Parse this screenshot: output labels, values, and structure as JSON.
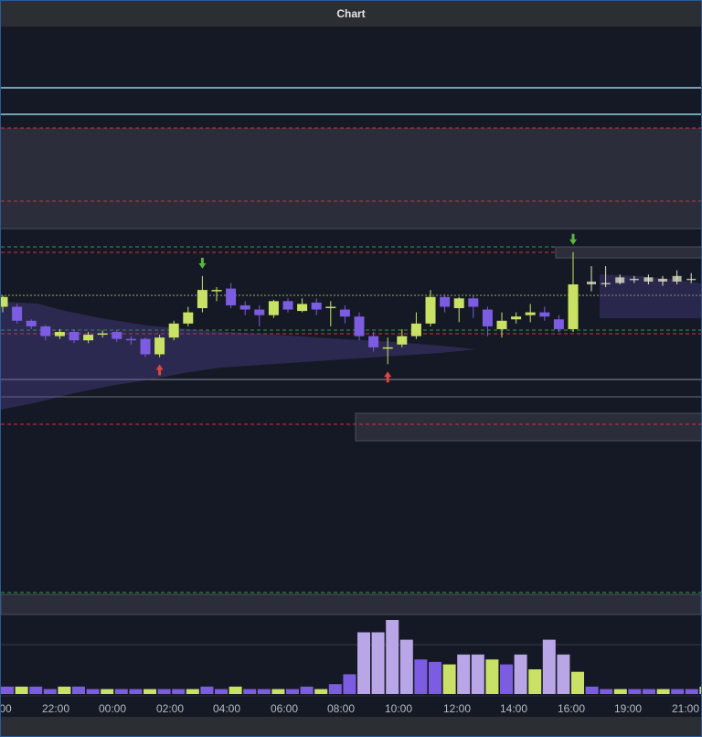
{
  "window": {
    "title": "Chart"
  },
  "colors": {
    "background": "#151925",
    "bull": "#c9e265",
    "bear": "#7c5ce0",
    "volume_high": "#b9a6e6",
    "zone": "#2b2d3a",
    "red_level": "#d8313a",
    "green_level": "#2e9e3c",
    "cyan_level": "#8fd3e0",
    "buy_arrow": "#e0453f",
    "sell_arrow": "#56b83c"
  },
  "chart_data": {
    "type": "candlestick",
    "x_tick_labels": [
      "00",
      "22:00",
      "00:00",
      "02:00",
      "04:00",
      "06:00",
      "08:00",
      "10:00",
      "12:00",
      "14:00",
      "16:00",
      "19:00",
      "21:00"
    ],
    "y_axis_range": [
      0,
      100
    ],
    "candles": [
      {
        "o": 84,
        "c": 91,
        "h": 92,
        "l": 80
      },
      {
        "o": 84,
        "c": 74,
        "h": 86,
        "l": 72
      },
      {
        "o": 74,
        "c": 70,
        "h": 75,
        "l": 68
      },
      {
        "o": 70,
        "c": 63,
        "h": 71,
        "l": 60
      },
      {
        "o": 63,
        "c": 66,
        "h": 68,
        "l": 61
      },
      {
        "o": 66,
        "c": 60,
        "h": 68,
        "l": 58
      },
      {
        "o": 60,
        "c": 64,
        "h": 66,
        "l": 58
      },
      {
        "o": 64,
        "c": 65,
        "h": 67,
        "l": 62
      },
      {
        "o": 66,
        "c": 61,
        "h": 67,
        "l": 59
      },
      {
        "o": 61,
        "c": 60,
        "h": 63,
        "l": 57
      },
      {
        "o": 61,
        "c": 50,
        "h": 62,
        "l": 48
      },
      {
        "o": 50,
        "c": 62,
        "h": 64,
        "l": 48
      },
      {
        "o": 62,
        "c": 72,
        "h": 74,
        "l": 60
      },
      {
        "o": 72,
        "c": 80,
        "h": 84,
        "l": 70
      },
      {
        "o": 83,
        "c": 96,
        "h": 106,
        "l": 80
      },
      {
        "o": 96,
        "c": 96,
        "h": 98,
        "l": 88
      },
      {
        "o": 97,
        "c": 85,
        "h": 101,
        "l": 83
      },
      {
        "o": 85,
        "c": 82,
        "h": 88,
        "l": 78
      },
      {
        "o": 82,
        "c": 78,
        "h": 85,
        "l": 70
      },
      {
        "o": 78,
        "c": 88,
        "h": 89,
        "l": 76
      },
      {
        "o": 88,
        "c": 82,
        "h": 90,
        "l": 80
      },
      {
        "o": 81,
        "c": 86,
        "h": 90,
        "l": 80
      },
      {
        "o": 87,
        "c": 82,
        "h": 90,
        "l": 78
      },
      {
        "o": 84,
        "c": 84,
        "h": 88,
        "l": 70
      },
      {
        "o": 82,
        "c": 77,
        "h": 85,
        "l": 72
      },
      {
        "o": 77,
        "c": 63,
        "h": 80,
        "l": 60
      },
      {
        "o": 63,
        "c": 55,
        "h": 66,
        "l": 52
      },
      {
        "o": 55,
        "c": 55,
        "h": 62,
        "l": 43
      },
      {
        "o": 57,
        "c": 63,
        "h": 68,
        "l": 55
      },
      {
        "o": 63,
        "c": 72,
        "h": 80,
        "l": 61
      },
      {
        "o": 72,
        "c": 91,
        "h": 96,
        "l": 70
      },
      {
        "o": 91,
        "c": 84,
        "h": 93,
        "l": 80
      },
      {
        "o": 83,
        "c": 90,
        "h": 91,
        "l": 73
      },
      {
        "o": 90,
        "c": 84,
        "h": 92,
        "l": 76
      },
      {
        "o": 82,
        "c": 70,
        "h": 84,
        "l": 63
      },
      {
        "o": 68,
        "c": 74,
        "h": 80,
        "l": 62
      },
      {
        "o": 75,
        "c": 77,
        "h": 80,
        "l": 72
      },
      {
        "o": 78,
        "c": 80,
        "h": 86,
        "l": 73
      },
      {
        "o": 80,
        "c": 77,
        "h": 84,
        "l": 74
      },
      {
        "o": 75,
        "c": 68,
        "h": 78,
        "l": 66
      },
      {
        "o": 68,
        "c": 100,
        "h": 123,
        "l": 66
      }
    ],
    "zone_candles": [
      {
        "o": 100,
        "c": 102,
        "h": 113,
        "l": 95
      },
      {
        "o": 101,
        "c": 101,
        "h": 113,
        "l": 98
      },
      {
        "o": 101,
        "c": 105,
        "h": 107,
        "l": 100
      },
      {
        "o": 103,
        "c": 104,
        "h": 106,
        "l": 101
      },
      {
        "o": 102,
        "c": 105,
        "h": 107,
        "l": 100
      },
      {
        "o": 102,
        "c": 104,
        "h": 106,
        "l": 99
      },
      {
        "o": 102,
        "c": 106,
        "h": 110,
        "l": 100
      },
      {
        "o": 104,
        "c": 104,
        "h": 108,
        "l": 101
      }
    ],
    "volume": [
      3,
      3,
      3,
      2,
      3,
      3,
      2,
      2,
      2,
      2,
      2,
      2,
      2,
      2,
      3,
      2,
      3,
      2,
      2,
      2,
      2,
      3,
      2,
      4,
      8,
      25,
      25,
      30,
      22,
      14,
      13,
      12,
      16,
      16,
      14,
      12,
      16,
      10,
      22,
      16,
      9,
      3,
      2,
      2,
      2,
      2,
      2,
      2,
      2,
      3
    ],
    "annotations": {
      "buy_arrows": [
        11,
        27
      ],
      "sell_arrows": [
        14,
        40
      ]
    }
  }
}
